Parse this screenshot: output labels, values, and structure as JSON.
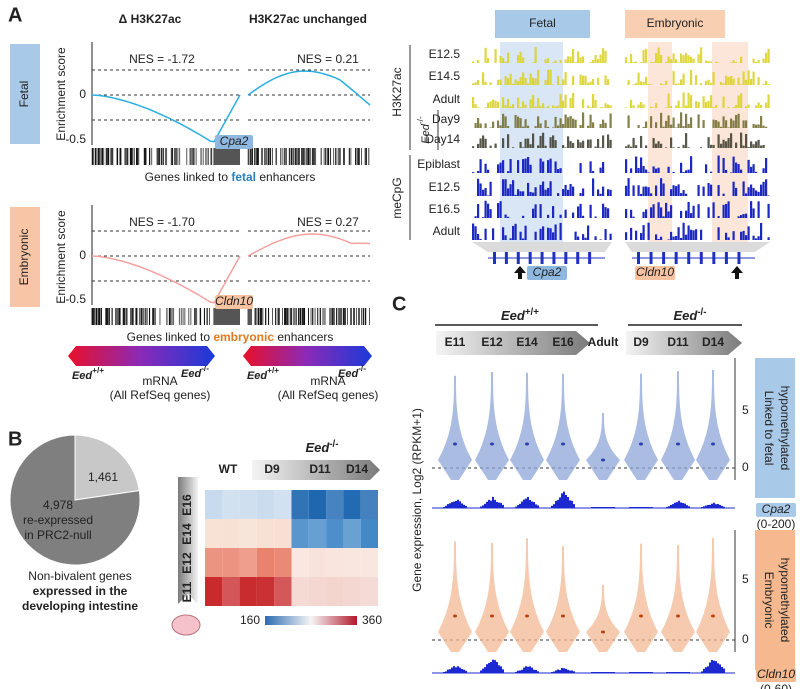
{
  "panel_a": {
    "label": "A",
    "columns": [
      "Δ H3K27ac",
      "H3K27ac unchanged"
    ],
    "y_label": "Enrichment score",
    "rows": [
      {
        "name": "Fetal",
        "yticks": [
          "0",
          "-0.5"
        ],
        "nes": [
          "NES = -1.72",
          "NES = 0.21"
        ],
        "gene": "Cpa2",
        "caption": [
          "Genes linked to ",
          "fetal",
          " enhancers"
        ]
      },
      {
        "name": "Embryonic",
        "yticks": [
          "0",
          "-0.5"
        ],
        "nes": [
          "NES = -1.70",
          "NES = 0.27"
        ],
        "gene": "Cldn10",
        "caption": [
          "Genes linked to ",
          "embryonic",
          " enhancers"
        ]
      }
    ],
    "legend": {
      "left": {
        "gene": "Eed",
        "genotype": "+/+"
      },
      "right": {
        "gene": "Eed",
        "genotype": "-/-"
      },
      "text": [
        "mRNA",
        "(All RefSeq genes)"
      ]
    },
    "tracks": {
      "regions": [
        "Fetal",
        "Embryonic"
      ],
      "groups": [
        {
          "name": "H3K27ac",
          "tracks": [
            "E12.5",
            "E14.5",
            "Adult",
            "Day9",
            "Day14"
          ]
        },
        {
          "name": "meCpG",
          "tracks": [
            "Epiblast",
            "E12.5",
            "E16.5",
            "Adult"
          ]
        }
      ],
      "mutant": {
        "gene": "Eed",
        "genotype": "-/-"
      },
      "genes": [
        "Cpa2",
        "Cldn10"
      ]
    }
  },
  "panel_b": {
    "label": "B",
    "pie": {
      "slices": [
        {
          "value": 1461,
          "label": "1,461"
        },
        {
          "value": 4978,
          "label": "4,978",
          "text": [
            "re-expressed",
            "in PRC2-null"
          ]
        }
      ],
      "caption": [
        "Non-bivalent genes",
        "expressed in the",
        "developing intestine"
      ]
    },
    "heatmap": {
      "wt": "WT",
      "mutant": {
        "gene": "Eed",
        "genotype": "-/-"
      },
      "mutant_stages": [
        "D9",
        "D11",
        "D14"
      ],
      "rows": [
        "E16",
        "E14",
        "E12",
        "E11"
      ],
      "colorbar": [
        "160",
        "360"
      ]
    }
  },
  "panel_c": {
    "label": "C",
    "groups": [
      {
        "gene": "Eed",
        "genotype": "+/+",
        "stages": [
          "E11",
          "E12",
          "E14",
          "E16"
        ],
        "extra": "Adult"
      },
      {
        "gene": "Eed",
        "genotype": "-/-",
        "stages": [
          "D9",
          "D11",
          "D14"
        ]
      }
    ],
    "y_label": "Gene expression, Log2 (RPKM+1)",
    "yticks": [
      "5",
      "0"
    ],
    "panels": [
      {
        "label": [
          "Linked to fetal",
          "hypomethylated"
        ],
        "gene": "Cpa2",
        "range": "(0-200)"
      },
      {
        "label": [
          "Embryonic",
          "hypomethylated"
        ],
        "gene": "Cldn10",
        "range": "(0-60)"
      }
    ]
  }
}
